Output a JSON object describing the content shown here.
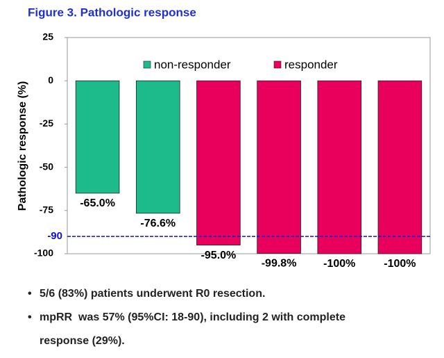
{
  "chart_data": {
    "type": "bar",
    "title": "Figure 3. Pathologic response",
    "y_label": "Pathologic response (%)",
    "series": [
      {
        "name": "non-responder",
        "color": "#1dbb8b",
        "values": [
          -65.0,
          -76.6,
          null,
          null,
          null,
          null
        ],
        "value_labels": [
          "-65.0%",
          "-76.6%",
          null,
          null,
          null,
          null
        ]
      },
      {
        "name": "responder",
        "color": "#e8005c",
        "values": [
          null,
          null,
          -95.0,
          -99.8,
          -100,
          -100
        ],
        "value_labels": [
          null,
          null,
          "-95.0%",
          "-99.8%",
          "-100%",
          "-100%"
        ]
      }
    ],
    "ylim": [
      -100,
      25
    ],
    "yticks": [
      25,
      0,
      -25,
      -50,
      -75,
      -100
    ],
    "reference_line": {
      "value": -90,
      "color": "#1010d0"
    },
    "legend": "top"
  },
  "notes": [
    "5/6 (83%) patients underwent R0 resection.",
    "mpRR  was 57% (95%CI: 18-90), including 2 with complete response (29%)."
  ]
}
